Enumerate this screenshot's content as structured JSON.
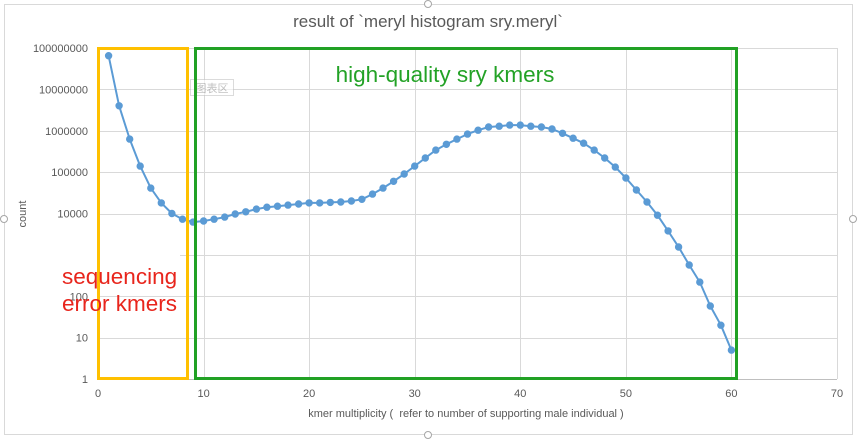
{
  "chart_data": {
    "type": "line",
    "title": "result of `meryl histogram sry.meryl`",
    "xlabel": "kmer multiplicity (  refer to number of supporting male individual )",
    "ylabel": "count",
    "xlim": [
      0,
      70
    ],
    "ylim": [
      1,
      100000000
    ],
    "yscale": "log",
    "x_ticks": [
      0,
      10,
      20,
      30,
      40,
      50,
      60,
      70
    ],
    "y_ticks": [
      1,
      10,
      100,
      1000,
      10000,
      100000,
      1000000,
      10000000,
      100000000
    ],
    "grid": true,
    "series": [
      {
        "color": "#5b9bd5",
        "x": [
          1,
          2,
          3,
          4,
          5,
          6,
          7,
          8,
          9,
          10,
          11,
          12,
          13,
          14,
          15,
          16,
          17,
          18,
          19,
          20,
          21,
          22,
          23,
          24,
          25,
          26,
          27,
          28,
          29,
          30,
          31,
          32,
          33,
          34,
          35,
          36,
          37,
          38,
          39,
          40,
          41,
          42,
          43,
          44,
          45,
          46,
          47,
          48,
          49,
          50,
          51,
          52,
          53,
          54,
          55,
          56,
          57,
          58,
          59,
          60
        ],
        "y": [
          65000000,
          4000000,
          630000,
          140000,
          41000,
          18000,
          10000,
          7300,
          6200,
          6600,
          7300,
          8200,
          9700,
          11000,
          12800,
          14200,
          15000,
          16000,
          17000,
          18000,
          18000,
          18500,
          19000,
          20000,
          22000,
          29500,
          41000,
          60000,
          90000,
          140000,
          220000,
          340000,
          470000,
          630000,
          830000,
          1030000,
          1230000,
          1290000,
          1370000,
          1370000,
          1290000,
          1230000,
          1100000,
          870000,
          660000,
          500000,
          340000,
          220000,
          132000,
          72000,
          37000,
          19000,
          9100,
          3800,
          1550,
          570,
          220,
          58,
          20,
          5
        ]
      }
    ]
  },
  "annotations": {
    "error_kmers": {
      "lines": [
        "sequencing",
        "error kmers"
      ],
      "text_color": "#e8251c",
      "box_color": "#ffc000"
    },
    "high_quality_kmers": {
      "text": "high-quality sry kmers",
      "text_color": "#23a226",
      "box_color": "#21a124"
    }
  },
  "tooltip": {
    "text": "图表区"
  }
}
